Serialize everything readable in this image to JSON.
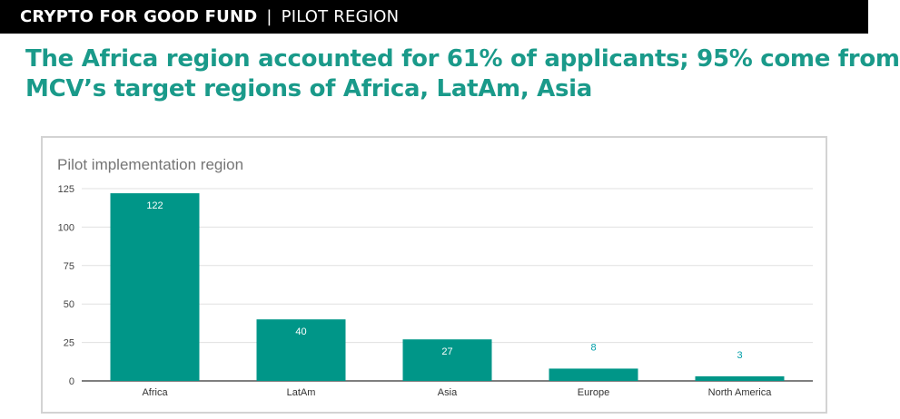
{
  "header": {
    "brand": "CRYPTO FOR GOOD FUND",
    "separator": "|",
    "section": "PILOT REGION"
  },
  "headline": {
    "line1": "The Africa region accounted for 61% of applicants; 95% come from",
    "line2": "MCV’s target regions of Africa, LatAm, Asia"
  },
  "chart_data": {
    "type": "bar",
    "title": "Pilot implementation region",
    "categories": [
      "Africa",
      "LatAm",
      "Asia",
      "Europe",
      "North America"
    ],
    "values": [
      122,
      40,
      27,
      8,
      3
    ],
    "data_labels": [
      "122",
      "40",
      "27",
      "8",
      "3"
    ],
    "y_ticks": [
      0,
      25,
      50,
      75,
      100,
      125
    ],
    "ylim": [
      0,
      125
    ],
    "grid": true,
    "colors": {
      "bar": "#009688",
      "label_inside": "#ffffff",
      "label_outside": "#009ea8"
    }
  }
}
